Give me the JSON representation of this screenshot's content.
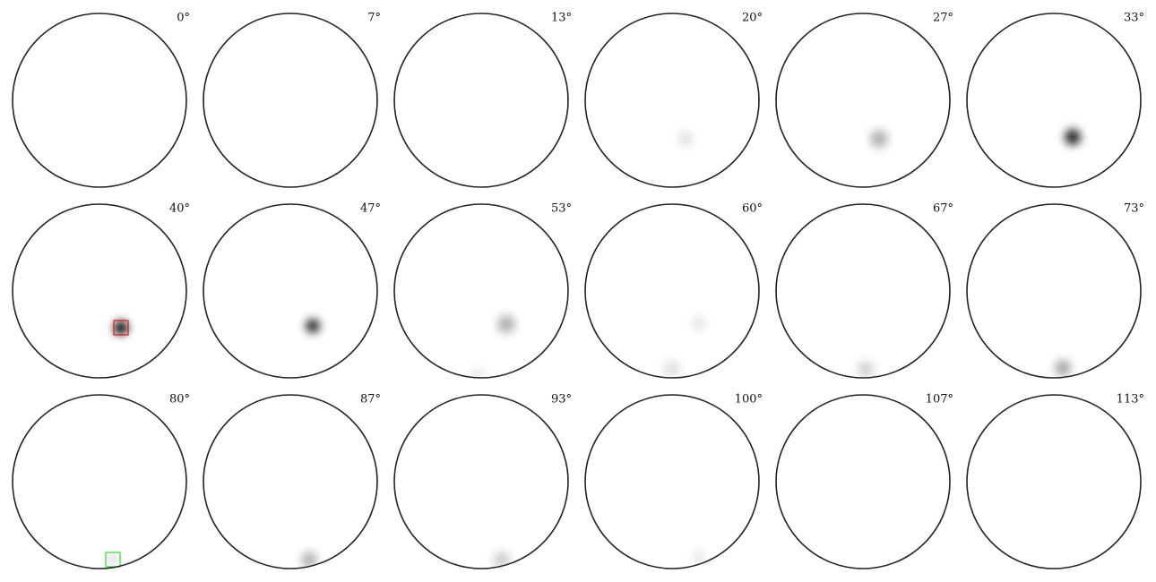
{
  "panels": [
    "0°",
    "7°",
    "13°",
    "20°",
    "27°",
    "33°",
    "40°",
    "47°",
    "53°",
    "60°",
    "67°",
    "73°",
    "80°",
    "87°",
    "93°",
    "100°",
    "107°",
    "113°"
  ]
}
